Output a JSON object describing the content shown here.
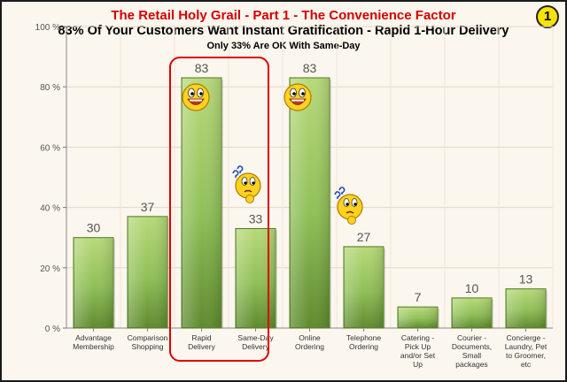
{
  "titles": {
    "line1": "The Retail Holy Grail - Part 1 - The Convenience Factor",
    "line2": "83% Of Your Customers Want Instant Gratification - Rapid 1-Hour Delivery",
    "line3": "Only 33% Are OK With Same-Day",
    "badge": "1"
  },
  "icons": [
    "happy-smiley-icon",
    "happy-smiley-icon",
    "confused-smiley-icon",
    "confused-smiley-icon"
  ],
  "colors": {
    "bar_light": "#b8d97a",
    "bar_dark": "#5e8a2e",
    "highlight": "#e00000",
    "badge": "#f7e300",
    "title": "#d40000"
  },
  "chart_data": {
    "type": "bar",
    "categories": [
      [
        "Advantage",
        "Membership"
      ],
      [
        "Comparison",
        "Shopping"
      ],
      [
        "Rapid",
        "Delivery"
      ],
      [
        "Same-Day",
        "Delivery"
      ],
      [
        "Online",
        "Ordering"
      ],
      [
        "Telephone",
        "Ordering"
      ],
      [
        "Catering -",
        "Pick Up",
        "and/or Set",
        "Up"
      ],
      [
        "Courier -",
        "Documents,",
        "Small",
        "packages"
      ],
      [
        "Concierge -",
        "Laundry, Pet",
        "to Groomer,",
        "etc"
      ]
    ],
    "values": [
      30,
      37,
      83,
      33,
      83,
      27,
      7,
      10,
      13
    ],
    "ylim": [
      0,
      100
    ],
    "yticks": [
      "0 %",
      "20 %",
      "40 %",
      "60 %",
      "80 %",
      "100 %"
    ],
    "grid": true,
    "legend": "none"
  }
}
